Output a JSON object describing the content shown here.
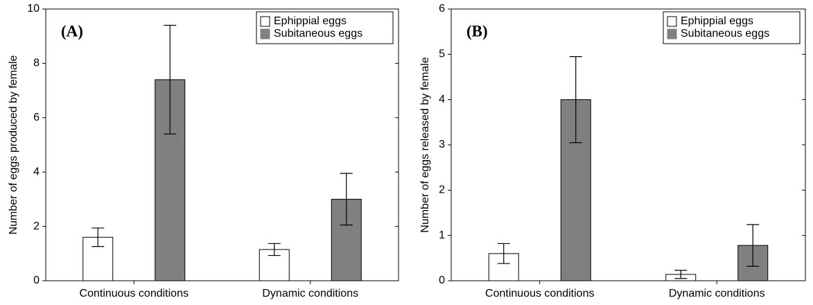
{
  "chart_data": [
    {
      "type": "bar",
      "panel_label": "(A)",
      "ylabel": "Number of eggs produced by female",
      "categories": [
        "Continuous conditions",
        "Dynamic conditions"
      ],
      "series": [
        {
          "name": "Ephippial eggs",
          "color": "#ffffff",
          "values": [
            1.6,
            1.15
          ],
          "errors": [
            0.34,
            0.22
          ]
        },
        {
          "name": "Subitaneous eggs",
          "color": "#808080",
          "values": [
            7.4,
            3.0
          ],
          "errors": [
            2.0,
            0.95
          ]
        }
      ],
      "ylim": [
        0,
        10
      ],
      "yticks": [
        0,
        2,
        4,
        6,
        8,
        10
      ]
    },
    {
      "type": "bar",
      "panel_label": "(B)",
      "ylabel": "Number of eggs released by female",
      "categories": [
        "Continuous conditions",
        "Dynamic conditions"
      ],
      "series": [
        {
          "name": "Ephippial eggs",
          "color": "#ffffff",
          "values": [
            0.6,
            0.14
          ],
          "errors": [
            0.22,
            0.09
          ]
        },
        {
          "name": "Subitaneous eggs",
          "color": "#808080",
          "values": [
            4.0,
            0.78
          ],
          "errors": [
            0.95,
            0.46
          ]
        }
      ],
      "ylim": [
        0,
        6
      ],
      "yticks": [
        0,
        1,
        2,
        3,
        4,
        5,
        6
      ]
    }
  ]
}
